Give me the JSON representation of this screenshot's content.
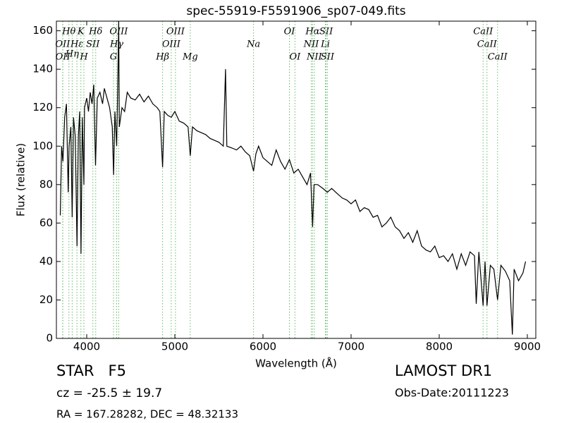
{
  "chart_data": {
    "type": "line",
    "title": "spec-55919-F5591906_sp07-049.fits",
    "xlabel": "Wavelength (Å)",
    "ylabel": "Flux (relative)",
    "xlim": [
      3656,
      9096
    ],
    "ylim": [
      0,
      165
    ],
    "xticks": [
      4000,
      5000,
      6000,
      7000,
      8000,
      9000
    ],
    "yticks": [
      0,
      20,
      40,
      60,
      80,
      100,
      120,
      140,
      160
    ],
    "color": "#000000",
    "marker_color": "#66bb66",
    "x": [
      3700,
      3715,
      3730,
      3750,
      3770,
      3790,
      3800,
      3820,
      3835,
      3850,
      3870,
      3890,
      3905,
      3920,
      3935,
      3950,
      3968,
      3975,
      4000,
      4020,
      4040,
      4060,
      4080,
      4100,
      4120,
      4150,
      4180,
      4200,
      4230,
      4260,
      4290,
      4305,
      4320,
      4340,
      4355,
      4363,
      4370,
      4400,
      4430,
      4460,
      4500,
      4550,
      4600,
      4650,
      4700,
      4750,
      4800,
      4830,
      4861,
      4880,
      4920,
      4960,
      5000,
      5050,
      5100,
      5150,
      5175,
      5200,
      5250,
      5300,
      5350,
      5400,
      5450,
      5500,
      5550,
      5575,
      5590,
      5650,
      5700,
      5750,
      5800,
      5850,
      5893,
      5920,
      5950,
      6000,
      6050,
      6100,
      6150,
      6200,
      6250,
      6300,
      6350,
      6400,
      6450,
      6500,
      6540,
      6563,
      6580,
      6620,
      6680,
      6730,
      6780,
      6850,
      6900,
      6950,
      7000,
      7050,
      7100,
      7150,
      7200,
      7250,
      7300,
      7350,
      7400,
      7450,
      7500,
      7550,
      7600,
      7650,
      7700,
      7750,
      7800,
      7850,
      7900,
      7950,
      8000,
      8050,
      8100,
      8150,
      8200,
      8250,
      8300,
      8350,
      8400,
      8420,
      8450,
      8498,
      8520,
      8542,
      8580,
      8620,
      8662,
      8700,
      8750,
      8800,
      8830,
      8850,
      8900,
      8950,
      8980
    ],
    "values": [
      64,
      100,
      92,
      115,
      122,
      76,
      100,
      110,
      63,
      115,
      105,
      48,
      105,
      118,
      44,
      115,
      80,
      120,
      125,
      118,
      128,
      122,
      132,
      90,
      125,
      128,
      122,
      130,
      125,
      120,
      110,
      85,
      118,
      100,
      140,
      165,
      110,
      120,
      118,
      128,
      125,
      124,
      127,
      123,
      126,
      122,
      120,
      118,
      89,
      118,
      116,
      115,
      118,
      113,
      112,
      110,
      95,
      110,
      108,
      107,
      106,
      104,
      103,
      102,
      100,
      140,
      100,
      99,
      98,
      100,
      97,
      95,
      87,
      96,
      100,
      94,
      92,
      90,
      98,
      92,
      88,
      93,
      86,
      88,
      84,
      80,
      86,
      58,
      80,
      80,
      78,
      76,
      78,
      75,
      73,
      72,
      70,
      72,
      66,
      68,
      67,
      63,
      64,
      58,
      60,
      63,
      58,
      56,
      52,
      55,
      50,
      56,
      48,
      46,
      45,
      48,
      42,
      43,
      40,
      44,
      36,
      44,
      38,
      45,
      43,
      18,
      45,
      17,
      40,
      17,
      38,
      36,
      20,
      38,
      35,
      30,
      2,
      36,
      30,
      34,
      40
    ],
    "lines": [
      {
        "label": "Hθ",
        "wavelength": 3798
      },
      {
        "label": "OII",
        "wavelength": 3727
      },
      {
        "label": "OII",
        "wavelength": 3729
      },
      {
        "label": "Hη",
        "wavelength": 3835
      },
      {
        "label": "Hε",
        "wavelength": 3889
      },
      {
        "label": "K",
        "wavelength": 3934
      },
      {
        "label": "SII",
        "wavelength": 4070
      },
      {
        "label": "H",
        "wavelength": 3968
      },
      {
        "label": "Hδ",
        "wavelength": 4102
      },
      {
        "label": "OIII",
        "wavelength": 4363
      },
      {
        "label": "Hγ",
        "wavelength": 4340
      },
      {
        "label": "G",
        "wavelength": 4304
      },
      {
        "label": "OIII",
        "wavelength": 5007
      },
      {
        "label": "OIII",
        "wavelength": 4959
      },
      {
        "label": "Hβ",
        "wavelength": 4861
      },
      {
        "label": "Mg",
        "wavelength": 5175
      },
      {
        "label": "Na",
        "wavelength": 5893
      },
      {
        "label": "OI",
        "wavelength": 6300
      },
      {
        "label": "OI",
        "wavelength": 6363
      },
      {
        "label": "Hα",
        "wavelength": 6563
      },
      {
        "label": "NII",
        "wavelength": 6548
      },
      {
        "label": "NII",
        "wavelength": 6583
      },
      {
        "label": "SII",
        "wavelength": 6717
      },
      {
        "label": "Li",
        "wavelength": 6708
      },
      {
        "label": "SII",
        "wavelength": 6731
      },
      {
        "label": "CaII",
        "wavelength": 8498
      },
      {
        "label": "CaII",
        "wavelength": 8542
      },
      {
        "label": "CaII",
        "wavelength": 8662
      }
    ],
    "info": {
      "object": "STAR   F5",
      "cz": "cz = -25.5 ± 19.7",
      "coords": "RA = 167.28282, DEC = 48.32133",
      "survey": "LAMOST DR1",
      "date": "Obs-Date:20111223"
    }
  }
}
